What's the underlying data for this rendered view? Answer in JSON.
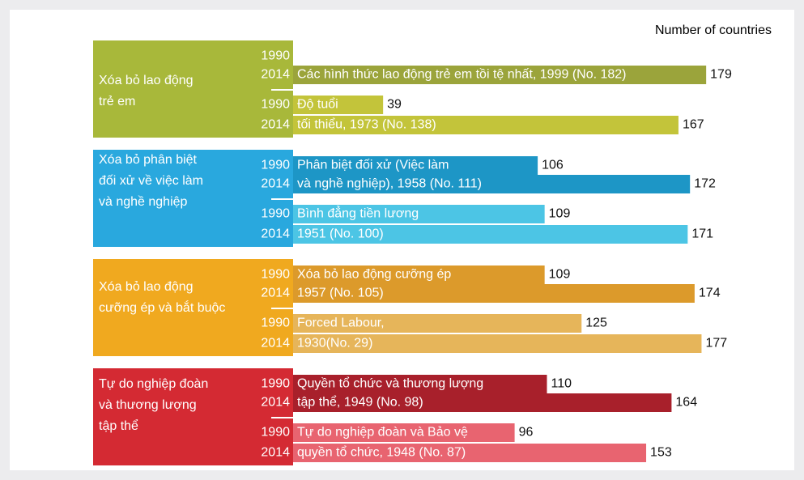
{
  "chart_data": {
    "type": "bar",
    "orientation": "horizontal",
    "axis_label": "Number of countries",
    "years": [
      "1990",
      "2014"
    ],
    "xlim": [
      0,
      180
    ],
    "groups": [
      {
        "name_lines": [
          "Xóa bỏ lao động",
          "trẻ em"
        ],
        "color": "#a8b83a",
        "conventions": [
          {
            "name_lines": [
              "",
              "Các hình thức lao động trẻ em tồi tệ nhất, 1999 (No. 182)"
            ],
            "color": "#9ba43b",
            "values": [
              null,
              179
            ]
          },
          {
            "name_lines": [
              "Độ tuổi",
              "tối thiểu, 1973 (No. 138)"
            ],
            "color": "#c3c43a",
            "values": [
              39,
              167
            ]
          }
        ]
      },
      {
        "name_lines": [
          "Xóa bỏ phân biệt",
          "đối xử về việc làm",
          "và nghề nghiệp"
        ],
        "color": "#29a8de",
        "conventions": [
          {
            "name_lines": [
              "Phân biệt đối xử (Việc làm",
              "và nghề nghiệp), 1958 (No. 111)"
            ],
            "color": "#1d96c6",
            "values": [
              106,
              172
            ]
          },
          {
            "name_lines": [
              "Bình đẳng tiền lương",
              "1951 (No. 100)"
            ],
            "color": "#4cc5e5",
            "values": [
              109,
              171
            ]
          }
        ]
      },
      {
        "name_lines": [
          "Xóa bỏ lao động",
          "cưỡng ép và bắt buộc"
        ],
        "color": "#f0a91f",
        "conventions": [
          {
            "name_lines": [
              "Xóa bỏ lao động cưỡng ép",
              "1957 (No. 105)"
            ],
            "color": "#dc9a2b",
            "values": [
              109,
              174
            ]
          },
          {
            "name_lines": [
              "Forced Labour,",
              "1930(No. 29)"
            ],
            "color": "#e6b55a",
            "values": [
              125,
              177
            ]
          }
        ]
      },
      {
        "name_lines": [
          "Tự do nghiệp đoàn",
          "và thương lượng",
          "tập thể"
        ],
        "color": "#d42a33",
        "conventions": [
          {
            "name_lines": [
              "Quyền tổ chức và thương lượng",
              "tập thể, 1949 (No. 98)"
            ],
            "color": "#a8202b",
            "values": [
              110,
              164
            ]
          },
          {
            "name_lines": [
              "Tự do nghiệp đoàn và Bảo vệ",
              "quyền tổ chức, 1948 (No. 87)"
            ],
            "color": "#e86470",
            "values": [
              96,
              153
            ]
          }
        ]
      }
    ]
  }
}
